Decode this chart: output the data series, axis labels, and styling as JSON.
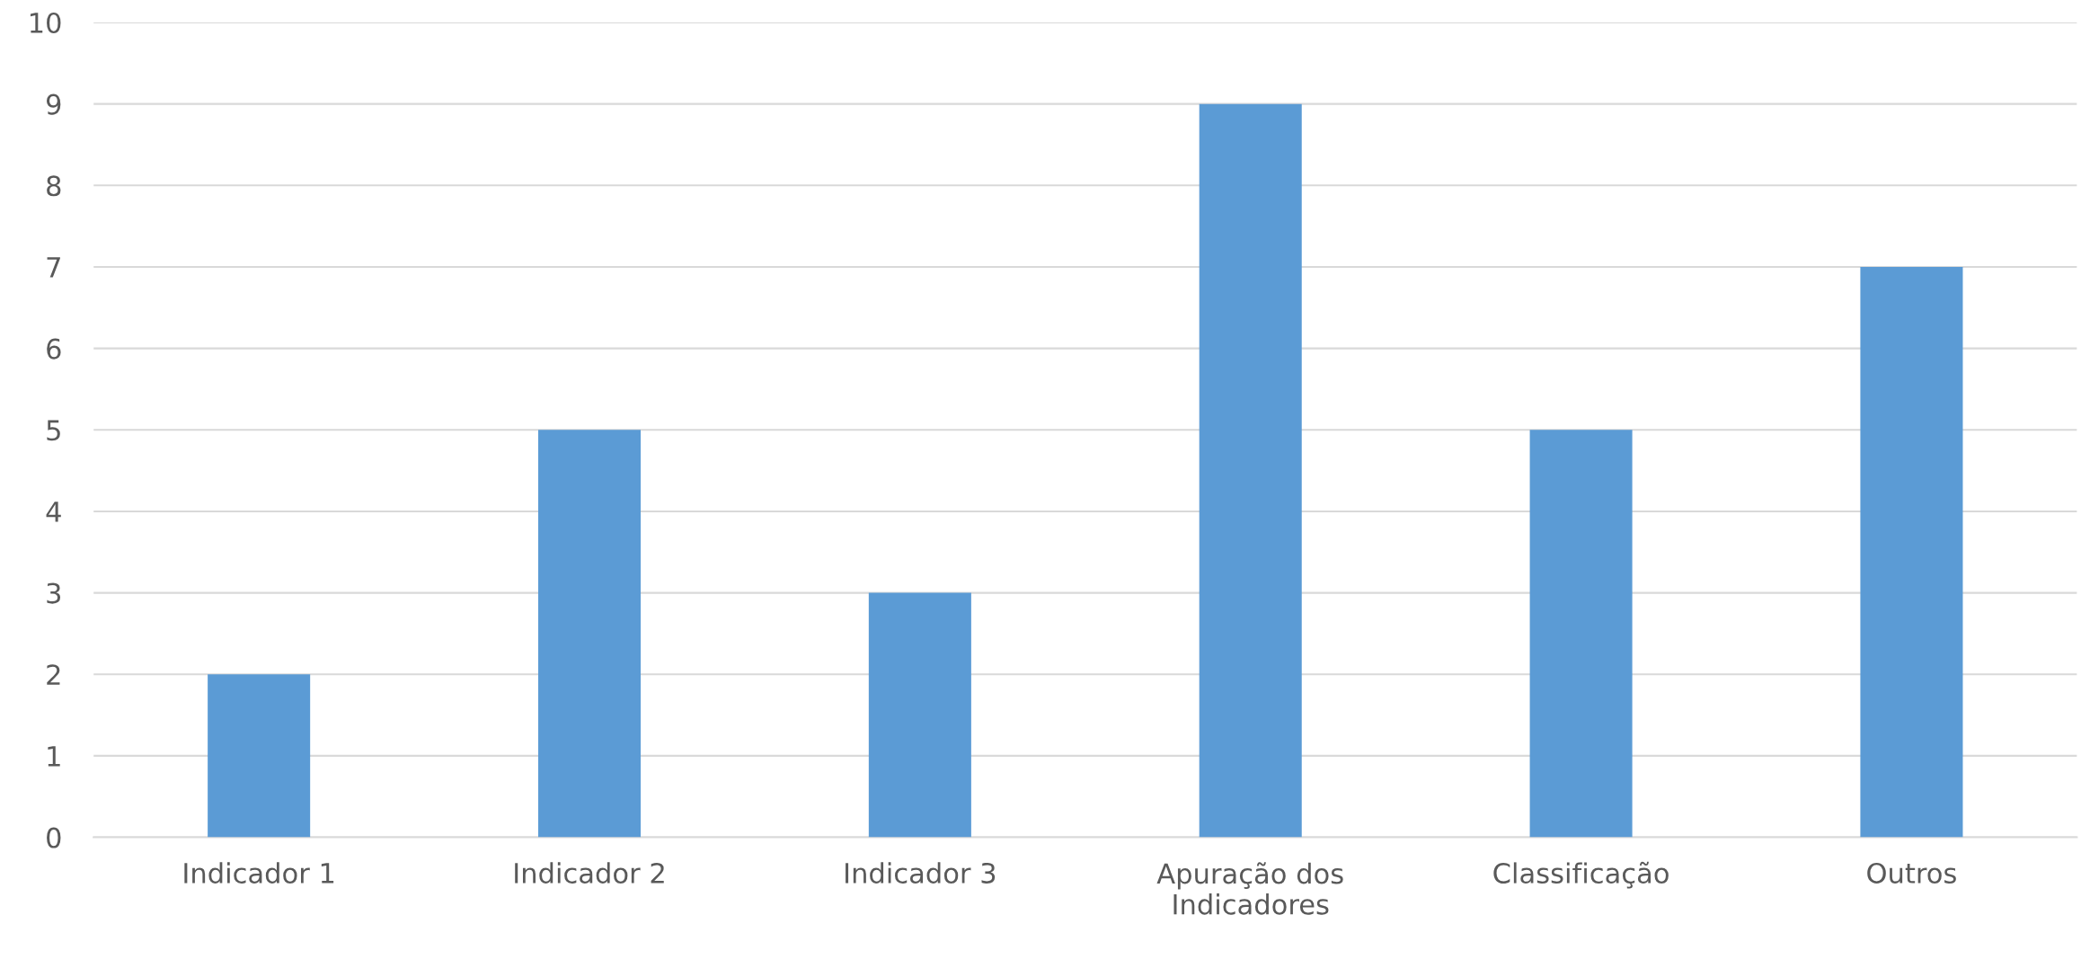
{
  "chart_data": {
    "type": "bar",
    "categories": [
      "Indicador 1",
      "Indicador 2",
      "Indicador 3",
      "Apuração dos Indicadores",
      "Classificação",
      "Outros"
    ],
    "values": [
      2,
      5,
      3,
      9,
      5,
      7
    ],
    "color": "#5b9bd5",
    "ylim": [
      0,
      10
    ],
    "yticks": [
      0,
      1,
      2,
      3,
      4,
      5,
      6,
      7,
      8,
      9,
      10
    ],
    "grid": "y"
  }
}
